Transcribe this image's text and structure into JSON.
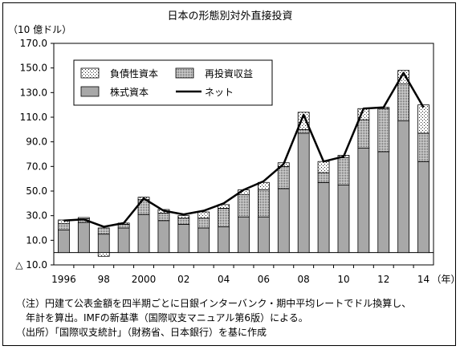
{
  "title": "日本の形態別対外直接投資",
  "unit_label": "（10 億ドル）",
  "notes": {
    "line1": "（注）円建て公表金額を四半期ごとに日銀インターバンク・期中平均レートでドル換算し、",
    "line2": "　年計を算出。IMFの新基準（国際収支マニュアル第6版）による。",
    "source": "（出所）「国際収支統計」（財務省、日本銀行）を基に作成"
  },
  "legend": {
    "debt": "負債性資本",
    "reinvest": "再投資収益",
    "equity": "株式資本",
    "net": "ネット"
  },
  "chart_data": {
    "type": "bar",
    "stacked": true,
    "title": "日本の形態別対外直接投資",
    "ylabel": "（10 億ドル）",
    "xlabel": "（年）",
    "ylim": [
      -10,
      170
    ],
    "yticks": [
      -10,
      10,
      30,
      50,
      70,
      90,
      110,
      130,
      150,
      170
    ],
    "ytick_labels": [
      "△ 10.0",
      "10.0",
      "30.0",
      "50.0",
      "70.0",
      "90.0",
      "110.0",
      "130.0",
      "150.0",
      "170.0"
    ],
    "categories": [
      1996,
      1997,
      1998,
      1999,
      2000,
      2001,
      2002,
      2003,
      2004,
      2005,
      2006,
      2007,
      2008,
      2009,
      2010,
      2011,
      2012,
      2013,
      2014
    ],
    "xtick_labels": [
      "1996",
      "",
      "98",
      "",
      "2000",
      "",
      "02",
      "",
      "04",
      "",
      "06",
      "",
      "08",
      "",
      "10",
      "",
      "12",
      "",
      "14"
    ],
    "xtick_suffix": "（年）",
    "legend_position": "top-left",
    "series": [
      {
        "name": "株式資本",
        "key": "equity",
        "values": [
          18.5,
          24.5,
          15,
          20,
          31,
          26,
          23,
          20,
          21,
          29,
          29,
          52,
          97,
          57,
          55,
          85,
          82,
          107,
          74
        ]
      },
      {
        "name": "再投資収益",
        "key": "reinvest",
        "values": [
          5,
          3,
          5,
          3,
          12,
          6,
          5,
          8,
          15,
          18,
          22,
          18,
          3,
          8,
          22,
          23,
          35,
          30,
          23
        ]
      },
      {
        "name": "負債性資本",
        "key": "debt",
        "values": [
          3,
          1,
          -3,
          1,
          2,
          3,
          2,
          5,
          3,
          4,
          6,
          3,
          14,
          9,
          2,
          9,
          1,
          11,
          23
        ]
      },
      {
        "name": "ネット",
        "key": "net",
        "type": "line",
        "values": [
          26,
          27,
          21,
          24,
          44,
          34,
          31,
          34,
          40,
          51,
          58,
          72,
          112,
          74,
          78,
          117,
          118,
          146,
          118
        ]
      }
    ]
  }
}
